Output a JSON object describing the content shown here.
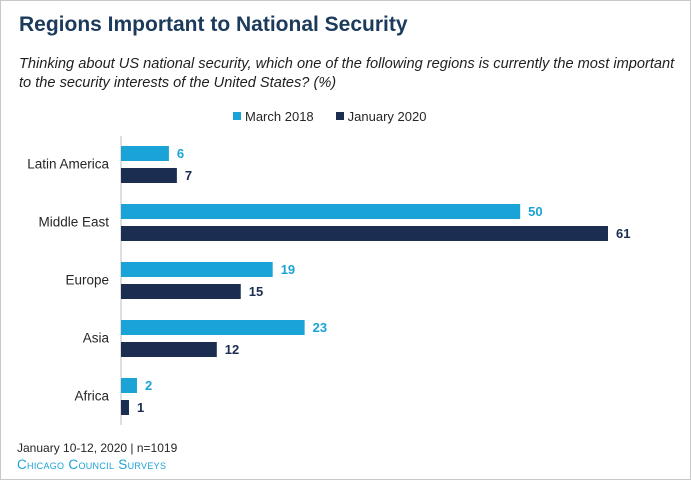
{
  "title": "Regions Important to National Security",
  "subtitle": "Thinking about US national security, which one of the following regions is currently the most important to the security interests of the United States? (%)",
  "footer": {
    "note": "January 10-12, 2020 | n=1019",
    "brand": "Chicago Council Surveys"
  },
  "colors": {
    "march_2018": "#1aa3d6",
    "january_2020": "#1b2e52"
  },
  "chart_data": {
    "type": "bar",
    "orientation": "horizontal",
    "title": "Regions Important to National Security",
    "categories": [
      "Latin America",
      "Middle East",
      "Europe",
      "Asia",
      "Africa"
    ],
    "series": [
      {
        "name": "March 2018",
        "values": [
          6,
          50,
          19,
          23,
          2
        ]
      },
      {
        "name": "January 2020",
        "values": [
          7,
          61,
          15,
          12,
          1
        ]
      }
    ],
    "xlabel": "",
    "ylabel": "",
    "xlim": [
      0,
      61
    ],
    "grid": false,
    "legend": "top",
    "data_labels": true
  }
}
